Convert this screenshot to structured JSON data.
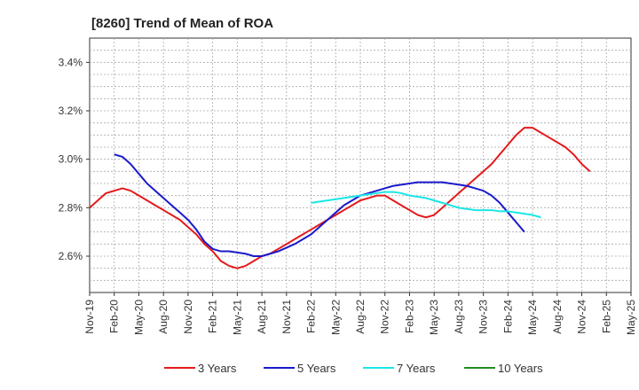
{
  "chart_data": {
    "type": "line",
    "title": "[8260]  Trend of Mean of ROA",
    "xlabel": "",
    "ylabel": "",
    "x_ticks": [
      "Nov-19",
      "Feb-20",
      "May-20",
      "Aug-20",
      "Nov-20",
      "Feb-21",
      "May-21",
      "Aug-21",
      "Nov-21",
      "Feb-22",
      "May-22",
      "Aug-22",
      "Nov-22",
      "Feb-23",
      "May-23",
      "Aug-23",
      "Nov-23",
      "Feb-24",
      "May-24",
      "Aug-24",
      "Nov-24",
      "Feb-25",
      "May-25"
    ],
    "y_ticks": [
      "2.6%",
      "2.8%",
      "3.0%",
      "3.2%",
      "3.4%"
    ],
    "y_tick_values": [
      2.6,
      2.8,
      3.0,
      3.2,
      3.4
    ],
    "ylim": [
      2.45,
      3.5
    ],
    "grid": true,
    "legend_position": "bottom",
    "series": [
      {
        "name": "3 Years",
        "color": "#e41a1c",
        "x_start": "Nov-19",
        "values": [
          2.8,
          2.83,
          2.86,
          2.87,
          2.88,
          2.87,
          2.85,
          2.83,
          2.81,
          2.79,
          2.77,
          2.75,
          2.72,
          2.69,
          2.65,
          2.62,
          2.58,
          2.56,
          2.55,
          2.56,
          2.58,
          2.6,
          2.61,
          2.63,
          2.65,
          2.67,
          2.69,
          2.71,
          2.73,
          2.75,
          2.77,
          2.79,
          2.81,
          2.83,
          2.84,
          2.85,
          2.85,
          2.83,
          2.81,
          2.79,
          2.77,
          2.76,
          2.77,
          2.8,
          2.83,
          2.86,
          2.89,
          2.92,
          2.95,
          2.98,
          3.02,
          3.06,
          3.1,
          3.13,
          3.13,
          3.11,
          3.09,
          3.07,
          3.05,
          3.02,
          2.98,
          2.95
        ]
      },
      {
        "name": "5 Years",
        "color": "#1a1acc",
        "x_start": "Feb-20",
        "values": [
          3.02,
          3.01,
          2.98,
          2.94,
          2.9,
          2.87,
          2.84,
          2.81,
          2.78,
          2.75,
          2.71,
          2.66,
          2.63,
          2.62,
          2.62,
          2.615,
          2.61,
          2.6,
          2.6,
          2.61,
          2.62,
          2.635,
          2.65,
          2.67,
          2.69,
          2.72,
          2.75,
          2.78,
          2.81,
          2.83,
          2.85,
          2.86,
          2.87,
          2.88,
          2.89,
          2.895,
          2.9,
          2.905,
          2.905,
          2.905,
          2.905,
          2.9,
          2.895,
          2.89,
          2.88,
          2.87,
          2.85,
          2.82,
          2.78,
          2.74,
          2.7
        ]
      },
      {
        "name": "7 Years",
        "color": "#1ae6e6",
        "x_start": "Feb-22",
        "values": [
          2.82,
          2.825,
          2.83,
          2.835,
          2.84,
          2.845,
          2.85,
          2.855,
          2.86,
          2.865,
          2.865,
          2.86,
          2.85,
          2.845,
          2.84,
          2.83,
          2.82,
          2.81,
          2.8,
          2.795,
          2.79,
          2.79,
          2.79,
          2.785,
          2.785,
          2.78,
          2.775,
          2.77,
          2.76
        ]
      },
      {
        "name": "10 Years",
        "color": "#228b22",
        "x_start": "",
        "values": []
      }
    ]
  }
}
